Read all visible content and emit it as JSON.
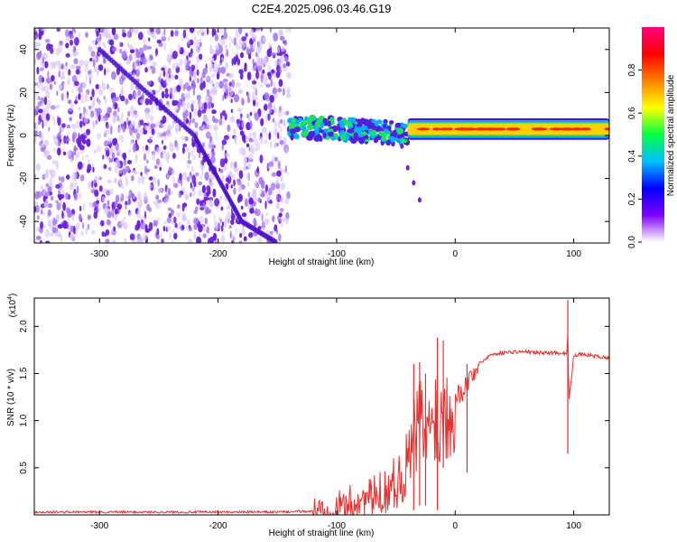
{
  "title": "C2E4.2025.096.03.46.G19",
  "chart_data": [
    {
      "type": "heatmap",
      "xlabel": "Height of straight line (km)",
      "ylabel": "Frequency (Hz)",
      "xlim": [
        -355,
        130
      ],
      "ylim": [
        -50,
        50
      ],
      "xticks": [
        -300,
        -200,
        -100,
        0,
        100
      ],
      "xtick_labels": [
        "-300",
        "-200",
        "-100",
        "0",
        "100"
      ],
      "yticks": [
        -40,
        -20,
        0,
        20,
        40
      ],
      "ytick_labels": [
        "-40",
        "-20",
        "0",
        "20",
        "40"
      ],
      "colorbar": {
        "label": "Normalized spectral amplitude",
        "range": [
          0,
          1
        ],
        "ticks": [
          0.0,
          0.2,
          0.4,
          0.6,
          0.8
        ],
        "tick_labels": [
          "0.0",
          "0.2",
          "0.4",
          "0.6",
          "0.8"
        ],
        "colors": [
          "#ffffff",
          "#8000ff",
          "#0000ff",
          "#00c0ff",
          "#00ff40",
          "#ffff00",
          "#ff8000",
          "#ff0000",
          "#ff0080"
        ]
      },
      "regions": [
        {
          "x": [
            -355,
            -140
          ],
          "freq": [
            -50,
            50
          ],
          "amplitude": 0.1,
          "note_color": "#8a2be2"
        },
        {
          "x": [
            -140,
            -40
          ],
          "freq": [
            -8,
            8
          ],
          "amplitude": 0.4,
          "note_color": "#00e060"
        },
        {
          "x": [
            -40,
            130
          ],
          "freq": [
            1,
            5
          ],
          "amplitude": 0.75,
          "note_color": "#ff2000"
        }
      ],
      "ridge": {
        "x": [
          -300,
          -260,
          -220,
          -200,
          -180,
          -150
        ],
        "freq": [
          40,
          20,
          0,
          -20,
          -40,
          -50
        ]
      },
      "tail": {
        "x": [
          -45,
          -40,
          -35,
          -30
        ],
        "freq": [
          -5,
          -15,
          -22,
          -30
        ]
      },
      "grid": false
    },
    {
      "type": "line",
      "xlabel": "Height of straight line (km)",
      "ylabel": "SNR (10 * v/v)",
      "ymultiplier": "(x10",
      "ymultiplier_exp": "4",
      "ymultiplier_close": ")",
      "xlim": [
        -355,
        130
      ],
      "ylim": [
        0,
        2.3
      ],
      "xticks": [
        -300,
        -200,
        -100,
        0,
        100
      ],
      "xtick_labels": [
        "-300",
        "-200",
        "-100",
        "0",
        "100"
      ],
      "yticks": [
        0.5,
        1.0,
        1.5,
        2.0
      ],
      "ytick_labels": [
        "0.5",
        "1.0",
        "1.5",
        "2.0"
      ],
      "color": "#e8302e",
      "x": [
        -355,
        -300,
        -250,
        -200,
        -150,
        -120,
        -100,
        -90,
        -80,
        -70,
        -60,
        -50,
        -45,
        -40,
        -35,
        -30,
        -25,
        -20,
        -18,
        -15,
        -10,
        -5,
        0,
        5,
        10,
        15,
        20,
        25,
        30,
        40,
        50,
        60,
        70,
        80,
        90,
        94,
        95,
        96,
        100,
        110,
        120,
        130
      ],
      "y": [
        0.03,
        0.03,
        0.03,
        0.03,
        0.03,
        0.04,
        0.07,
        0.12,
        0.15,
        0.18,
        0.25,
        0.35,
        0.4,
        0.55,
        0.8,
        1.0,
        0.8,
        0.9,
        1.3,
        0.9,
        1.1,
        1.2,
        1.25,
        1.3,
        1.4,
        1.5,
        1.6,
        1.65,
        1.7,
        1.72,
        1.73,
        1.73,
        1.72,
        1.72,
        1.72,
        1.7,
        1.9,
        1.2,
        1.7,
        1.7,
        1.68,
        1.66
      ],
      "spikes": [
        {
          "x": -35,
          "ymin": 0.05,
          "ymax": 1.6
        },
        {
          "x": -30,
          "ymin": 0.1,
          "ymax": 1.62
        },
        {
          "x": -25,
          "ymin": 0.1,
          "ymax": 1.5
        },
        {
          "x": -15,
          "ymin": 0.05,
          "ymax": 1.88
        },
        {
          "x": -10,
          "ymin": 0.5,
          "ymax": 1.85
        },
        {
          "x": 10,
          "ymin": 0.45,
          "ymax": 1.6
        },
        {
          "x": 95,
          "ymin": 0.65,
          "ymax": 2.28
        }
      ],
      "grid": false
    }
  ]
}
